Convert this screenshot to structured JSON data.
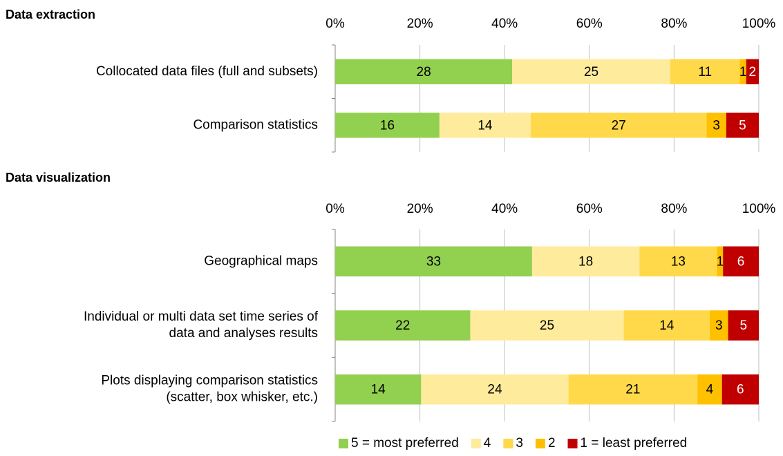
{
  "chart_data": [
    {
      "type": "bar",
      "stacked": "percent",
      "orientation": "horizontal",
      "title": "Data extraction",
      "categories": [
        "Collocated data files (full and subsets)",
        "Comparison statistics"
      ],
      "series": [
        {
          "name": "5 = most preferred",
          "color": "#92d050",
          "values": [
            28,
            16
          ]
        },
        {
          "name": "4",
          "color": "#ffeb9c",
          "values": [
            25,
            14
          ]
        },
        {
          "name": "3",
          "color": "#ffd94a",
          "values": [
            11,
            27
          ]
        },
        {
          "name": "2",
          "color": "#ffc000",
          "values": [
            1,
            3
          ]
        },
        {
          "name": "1 = least preferred",
          "color": "#c00000",
          "values": [
            2,
            5
          ]
        }
      ],
      "xlim": [
        0,
        100
      ],
      "xticks": [
        {
          "value": 0,
          "label": "0%"
        },
        {
          "value": 20,
          "label": "20%"
        },
        {
          "value": 40,
          "label": "40%"
        },
        {
          "value": 60,
          "label": "60%"
        },
        {
          "value": 80,
          "label": "80%"
        },
        {
          "value": 100,
          "label": "100%"
        }
      ],
      "grid": true,
      "legend": "bottom"
    },
    {
      "type": "bar",
      "stacked": "percent",
      "orientation": "horizontal",
      "title": "Data visualization",
      "categories": [
        "Geographical maps",
        [
          "Individual or multi data set time series of",
          "data and analyses results"
        ],
        [
          "Plots displaying comparison statistics",
          "(scatter, box whisker, etc.)"
        ]
      ],
      "series": [
        {
          "color": "#92d050",
          "values": [
            33,
            22,
            14
          ]
        },
        {
          "color": "#ffeb9c",
          "values": [
            18,
            25,
            24
          ]
        },
        {
          "color": "#ffd94a",
          "values": [
            13,
            14,
            21
          ]
        },
        {
          "color": "#ffc000",
          "values": [
            1,
            3,
            4
          ]
        },
        {
          "color": "#c00000",
          "values": [
            6,
            5,
            6
          ]
        }
      ],
      "xlim": [
        0,
        100
      ],
      "xticks": [
        {
          "value": 0,
          "label": "0%"
        },
        {
          "value": 20,
          "label": "20%"
        },
        {
          "value": 40,
          "label": "40%"
        },
        {
          "value": 60,
          "label": "60%"
        },
        {
          "value": 80,
          "label": "80%"
        },
        {
          "value": 100,
          "label": "100%"
        }
      ],
      "grid": true
    }
  ]
}
